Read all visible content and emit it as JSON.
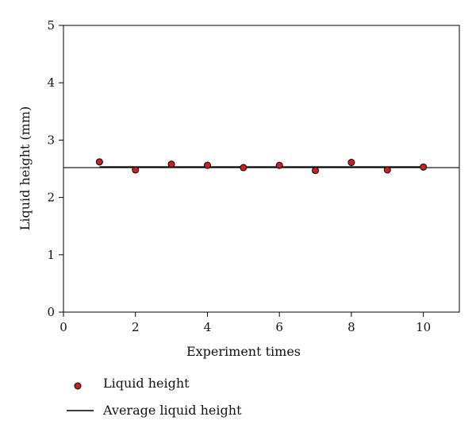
{
  "chart_data": {
    "type": "scatter",
    "xlabel": "Experiment times",
    "ylabel": "Liquid height (mm)",
    "xlim": [
      0,
      11
    ],
    "ylim": [
      0,
      5
    ],
    "xticks": [
      0,
      2,
      4,
      6,
      8,
      10
    ],
    "yticks": [
      0,
      1,
      2,
      3,
      4,
      5
    ],
    "grid": false,
    "legend_position": "bottom-left",
    "series": [
      {
        "name": "Liquid height",
        "kind": "scatter",
        "marker": "circle",
        "color": "#cc1f1f",
        "x": [
          1,
          2,
          3,
          4,
          5,
          6,
          7,
          8,
          9,
          10
        ],
        "y": [
          2.62,
          2.48,
          2.58,
          2.56,
          2.52,
          2.56,
          2.47,
          2.61,
          2.48,
          2.53
        ]
      },
      {
        "name": "Average liquid height",
        "kind": "line",
        "color": "#000000",
        "x": [
          1,
          10
        ],
        "y": [
          2.53,
          2.53
        ]
      },
      {
        "kind": "line",
        "color": "#000000",
        "x": [
          0,
          11
        ],
        "y": [
          2.52,
          2.52
        ]
      }
    ]
  }
}
